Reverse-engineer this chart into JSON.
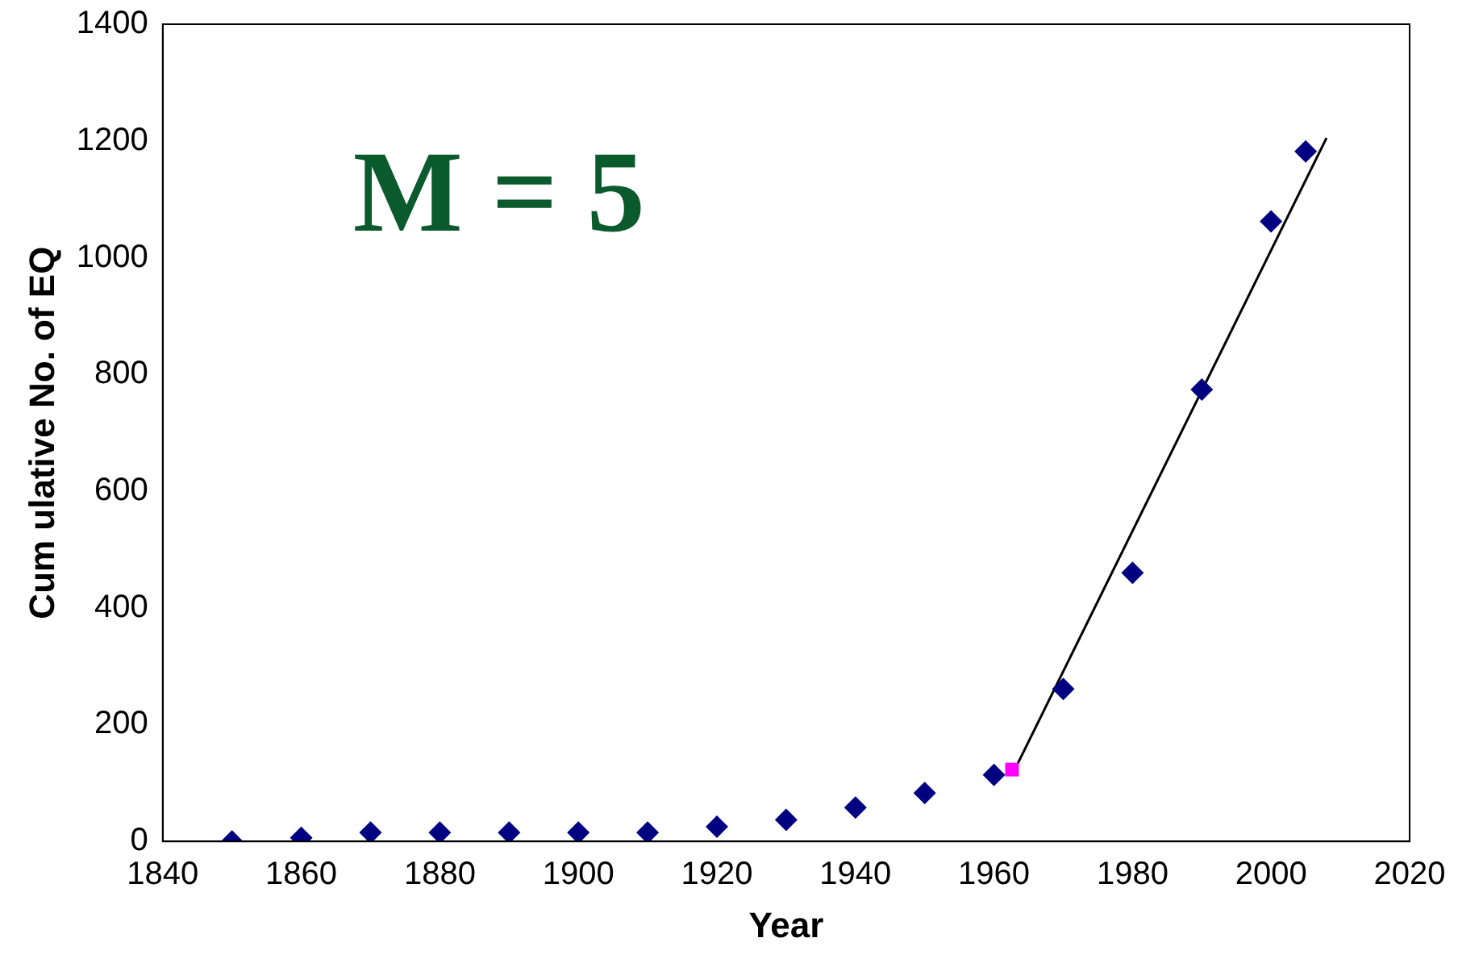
{
  "chart_data": {
    "type": "scatter",
    "xlabel": "Year",
    "ylabel": "Cum ulative No. of EQ",
    "annotations": [
      "M = 5"
    ],
    "xlim": [
      1840,
      2020
    ],
    "xticks": [
      1840,
      1860,
      1880,
      1900,
      1920,
      1940,
      1960,
      1980,
      2000,
      2020
    ],
    "ylim": [
      0,
      1400
    ],
    "yticks": [
      0,
      200,
      400,
      600,
      800,
      1000,
      1200,
      1400
    ],
    "grid": false,
    "legend": false,
    "series": [
      {
        "type": "scatter",
        "marker": "diamond",
        "color": "#000080",
        "x": [
          1850,
          1860,
          1870,
          1880,
          1890,
          1900,
          1910,
          1920,
          1930,
          1940,
          1950,
          1960,
          1970,
          1980,
          1990,
          2000,
          2005
        ],
        "values": [
          0,
          6,
          15,
          15,
          15,
          15,
          15,
          25,
          37,
          58,
          83,
          114,
          261,
          460,
          774,
          1062,
          1182
        ]
      },
      {
        "type": "scatter",
        "marker": "square",
        "color": "#ff00ff",
        "x": [
          1962.6
        ],
        "values": [
          123
        ]
      },
      {
        "type": "line",
        "marker": "none",
        "color": "#000000",
        "x": [
          1963,
          2008
        ],
        "values": [
          123,
          1205
        ]
      }
    ]
  }
}
